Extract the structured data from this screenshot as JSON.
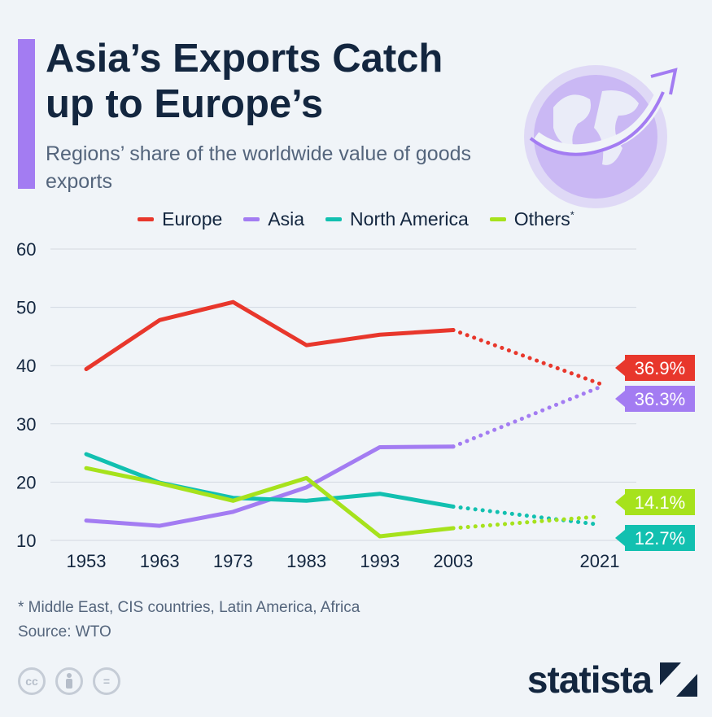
{
  "header": {
    "title": "Asia’s Exports Catch up to Europe’s",
    "subtitle": "Regions’ share of the worldwide value of goods exports",
    "accent_color": "#a37cf2",
    "illustration": "globe-with-arrow-icon"
  },
  "legend": [
    {
      "label": "Europe",
      "color": "#e8372c"
    },
    {
      "label": "Asia",
      "color": "#a37cf2"
    },
    {
      "label": "North America",
      "color": "#12c0b0"
    },
    {
      "label": "Others",
      "marker": "*",
      "color": "#a6e21c"
    }
  ],
  "chart_data": {
    "type": "line",
    "title": "Asia’s Exports Catch up to Europe’s",
    "subtitle": "Regions’ share of the worldwide value of goods exports",
    "x": [
      1953,
      1963,
      1973,
      1983,
      1993,
      2003,
      2021
    ],
    "xlabel": "",
    "ylabel": "",
    "ylim": [
      10,
      60
    ],
    "yticks": [
      10,
      20,
      30,
      40,
      50,
      60
    ],
    "grid": true,
    "legend_position": "top",
    "dotted_from": 2003,
    "series": [
      {
        "name": "Europe",
        "color": "#e8372c",
        "values": [
          39.4,
          47.8,
          50.9,
          43.5,
          45.3,
          46.1,
          36.9
        ],
        "end_label": "36.9%"
      },
      {
        "name": "Asia",
        "color": "#a37cf2",
        "values": [
          13.4,
          12.5,
          14.9,
          19.1,
          26.0,
          26.1,
          36.3
        ],
        "end_label": "36.3%"
      },
      {
        "name": "North America",
        "color": "#12c0b0",
        "values": [
          24.8,
          19.9,
          17.3,
          16.8,
          18.0,
          15.8,
          12.7
        ],
        "end_label": "12.7%"
      },
      {
        "name": "Others",
        "color": "#a6e21c",
        "values": [
          22.4,
          19.8,
          16.8,
          20.7,
          10.7,
          12.1,
          14.1
        ],
        "end_label": "14.1%"
      }
    ]
  },
  "footer": {
    "footnote": "* Middle East, CIS countries, Latin America, Africa",
    "source": "Source: WTO",
    "license_icons": [
      "cc",
      "by",
      "="
    ],
    "brand": "statista"
  }
}
